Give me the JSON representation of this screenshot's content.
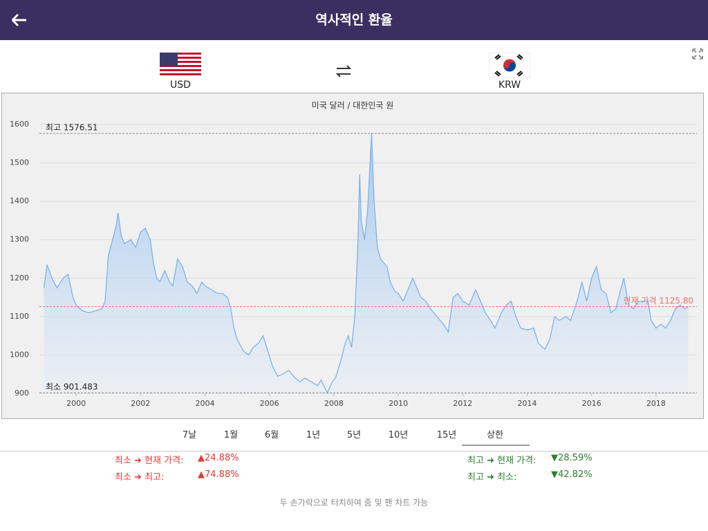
{
  "header": {
    "title": "역사적인 환율"
  },
  "currencies": {
    "from": "USD",
    "to": "KRW"
  },
  "chart_data": {
    "type": "area",
    "title": "미국 달러 / 대한민국 원",
    "color": "#7fb2e8",
    "grid": true,
    "x": [
      1999.0,
      1999.1,
      1999.25,
      1999.4,
      1999.6,
      1999.75,
      1999.9,
      2000.0,
      2000.2,
      2000.4,
      2000.6,
      2000.8,
      2000.9,
      2001.0,
      2001.1,
      2001.25,
      2001.3,
      2001.4,
      2001.5,
      2001.7,
      2001.85,
      2002.0,
      2002.15,
      2002.3,
      2002.4,
      2002.5,
      2002.6,
      2002.75,
      2002.9,
      2003.0,
      2003.15,
      2003.3,
      2003.45,
      2003.6,
      2003.75,
      2003.9,
      2004.0,
      2004.2,
      2004.4,
      2004.55,
      2004.7,
      2004.8,
      2004.9,
      2005.0,
      2005.2,
      2005.35,
      2005.5,
      2005.65,
      2005.8,
      2005.95,
      2006.1,
      2006.25,
      2006.4,
      2006.6,
      2006.8,
      2006.95,
      2007.1,
      2007.3,
      2007.5,
      2007.6,
      2007.8,
      2007.95,
      2008.05,
      2008.2,
      2008.35,
      2008.45,
      2008.55,
      2008.65,
      2008.75,
      2008.8,
      2008.85,
      2008.95,
      2009.05,
      2009.17,
      2009.25,
      2009.35,
      2009.45,
      2009.55,
      2009.65,
      2009.75,
      2009.9,
      2010.0,
      2010.15,
      2010.35,
      2010.45,
      2010.55,
      2010.7,
      2010.85,
      2011.0,
      2011.2,
      2011.4,
      2011.55,
      2011.7,
      2011.85,
      2012.0,
      2012.2,
      2012.4,
      2012.55,
      2012.7,
      2012.9,
      2013.0,
      2013.2,
      2013.35,
      2013.5,
      2013.65,
      2013.8,
      2014.0,
      2014.2,
      2014.35,
      2014.55,
      2014.7,
      2014.85,
      2015.0,
      2015.2,
      2015.35,
      2015.55,
      2015.7,
      2015.85,
      2016.0,
      2016.15,
      2016.3,
      2016.45,
      2016.6,
      2016.75,
      2016.9,
      2017.0,
      2017.15,
      2017.3,
      2017.45,
      2017.6,
      2017.75,
      2017.85,
      2018.0,
      2018.15,
      2018.3,
      2018.45,
      2018.6,
      2018.75,
      2018.9,
      2019.0
    ],
    "values": [
      1175,
      1235,
      1200,
      1175,
      1200,
      1210,
      1150,
      1130,
      1115,
      1110,
      1115,
      1120,
      1140,
      1260,
      1290,
      1340,
      1370,
      1310,
      1290,
      1300,
      1280,
      1320,
      1330,
      1300,
      1240,
      1200,
      1190,
      1220,
      1190,
      1180,
      1250,
      1230,
      1190,
      1180,
      1160,
      1190,
      1180,
      1170,
      1160,
      1160,
      1150,
      1120,
      1070,
      1040,
      1010,
      1000,
      1020,
      1030,
      1050,
      1010,
      970,
      945,
      950,
      960,
      940,
      930,
      940,
      930,
      920,
      935,
      901.483,
      930,
      940,
      980,
      1030,
      1050,
      1020,
      1100,
      1300,
      1470,
      1350,
      1300,
      1380,
      1576.51,
      1400,
      1280,
      1250,
      1240,
      1230,
      1190,
      1165,
      1160,
      1140,
      1180,
      1200,
      1180,
      1150,
      1140,
      1120,
      1100,
      1080,
      1060,
      1150,
      1160,
      1140,
      1130,
      1170,
      1140,
      1110,
      1085,
      1070,
      1110,
      1130,
      1140,
      1100,
      1070,
      1065,
      1070,
      1030,
      1015,
      1040,
      1100,
      1090,
      1100,
      1090,
      1140,
      1190,
      1140,
      1200,
      1230,
      1170,
      1160,
      1110,
      1120,
      1170,
      1200,
      1130,
      1120,
      1140,
      1140,
      1140,
      1090,
      1070,
      1080,
      1070,
      1090,
      1120,
      1130,
      1120,
      1125.8
    ],
    "xlim": [
      1998.86,
      2019.27
    ],
    "xticks": [
      2000,
      2002,
      2004,
      2006,
      2008,
      2010,
      2012,
      2014,
      2016,
      2018
    ],
    "ylim": [
      900,
      1600
    ],
    "yticks": [
      900,
      1000,
      1100,
      1200,
      1300,
      1400,
      1500,
      1600
    ],
    "annotations": [
      {
        "label": "최고 1576.51",
        "value": 1576.51,
        "color": "#888888"
      },
      {
        "label": "최소 901.483",
        "value": 901.483,
        "color": "#888888"
      },
      {
        "label": "현재 가격 1125.80",
        "value": 1125.8,
        "color": "#e57373"
      }
    ]
  },
  "ranges": [
    "7날",
    "1월",
    "6월",
    "1년",
    "5년",
    "10년",
    "15년",
    "상한"
  ],
  "selected_range": 7,
  "stats": [
    {
      "label": "최소 ➜ 현재 가격:",
      "change": "▲24.88%"
    },
    {
      "label": "최소 ➜ 최고:",
      "change": "▲74.88%"
    },
    {
      "label": "최고 ➜ 현재 가격:",
      "change": "▼28.59%"
    },
    {
      "label": "최고 ➜ 최소:",
      "change": "▼42.82%"
    }
  ],
  "note": "두 손가락으로 터치하여 줌 및 팬 차트 가능"
}
